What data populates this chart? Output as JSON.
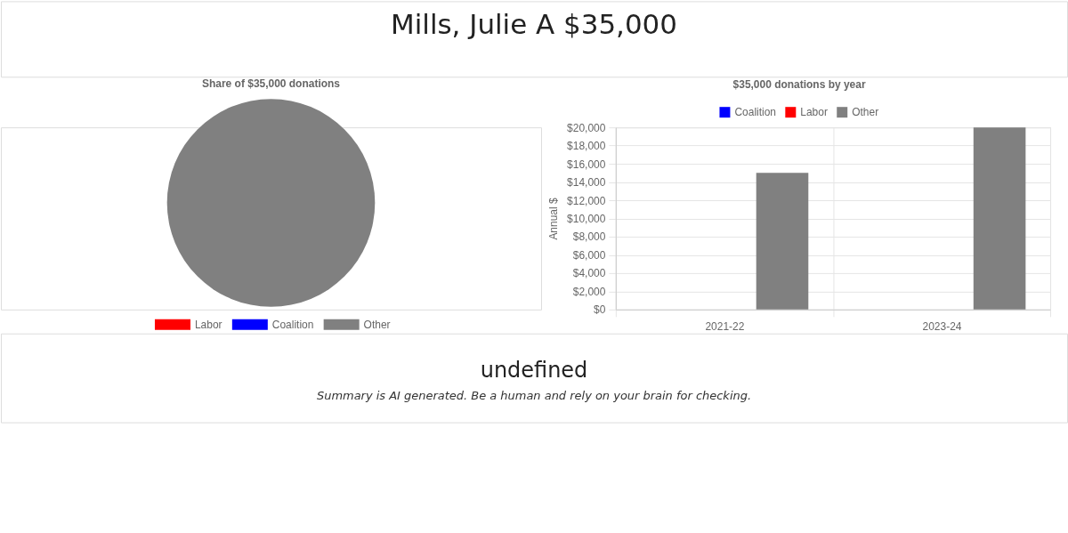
{
  "chart_data": [
    {
      "type": "other",
      "title": "Mills, Julie A $35,000"
    },
    {
      "type": "pie",
      "title": "Share of $35,000 donations",
      "categories": [
        "Labor",
        "Coalition",
        "Other"
      ],
      "values": [
        0,
        0,
        100
      ],
      "colors": [
        "#ff0000",
        "#0000ff",
        "#808080"
      ],
      "legend": "bottom"
    },
    {
      "type": "bar",
      "title": "$35,000 donations by year",
      "categories": [
        "2021-22",
        "2023-24"
      ],
      "series": [
        {
          "name": "Coalition",
          "color": "#0000ff",
          "values": [
            null,
            null
          ]
        },
        {
          "name": "Labor",
          "color": "#ff0000",
          "values": [
            null,
            null
          ]
        },
        {
          "name": "Other",
          "color": "#808080",
          "values": [
            15000,
            20000
          ]
        }
      ],
      "ylabel": "Annual $",
      "ylim": [
        0,
        20000
      ],
      "yticks": [
        {
          "value": 0,
          "label": "$0"
        },
        {
          "value": 2000,
          "label": "$2,000"
        },
        {
          "value": 4000,
          "label": "$4,000"
        },
        {
          "value": 6000,
          "label": "$6,000"
        },
        {
          "value": 8000,
          "label": "$8,000"
        },
        {
          "value": 10000,
          "label": "$10,000"
        },
        {
          "value": 12000,
          "label": "$12,000"
        },
        {
          "value": 14000,
          "label": "$14,000"
        },
        {
          "value": 16000,
          "label": "$16,000"
        },
        {
          "value": 18000,
          "label": "$18,000"
        },
        {
          "value": 20000,
          "label": "$20,000"
        }
      ],
      "grid": true,
      "legend": "top"
    },
    {
      "type": "other",
      "title": "undefined",
      "annotations": [
        "Summary is AI generated. Be a human and rely on your brain for checking."
      ]
    }
  ]
}
